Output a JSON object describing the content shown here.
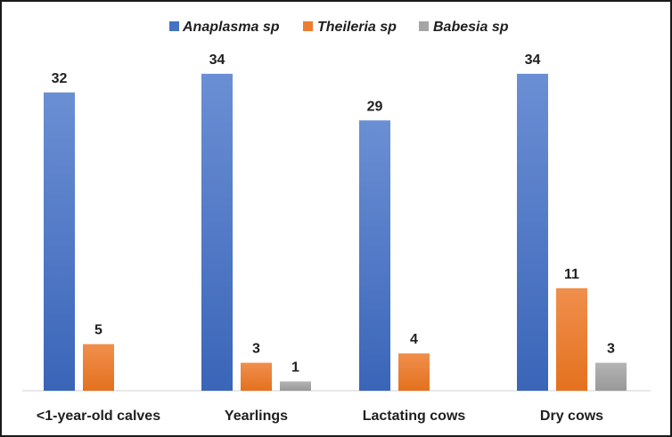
{
  "chart_data": {
    "type": "bar",
    "title": "",
    "xlabel": "",
    "ylabel": "",
    "ylim": [
      0,
      38
    ],
    "grid": false,
    "legend_position": "top-center",
    "categories": [
      "<1-year-old calves",
      "Yearlings",
      "Lactating cows",
      "Dry cows"
    ],
    "series": [
      {
        "name": "Anaplasma sp",
        "color": "#4472C4",
        "values": [
          32,
          34,
          29,
          34
        ]
      },
      {
        "name": "Theileria sp",
        "color": "#ED7D31",
        "values": [
          5,
          3,
          4,
          11
        ]
      },
      {
        "name": "Babesia sp",
        "color": "#A5A5A5",
        "values": [
          null,
          1,
          null,
          3
        ]
      }
    ]
  }
}
